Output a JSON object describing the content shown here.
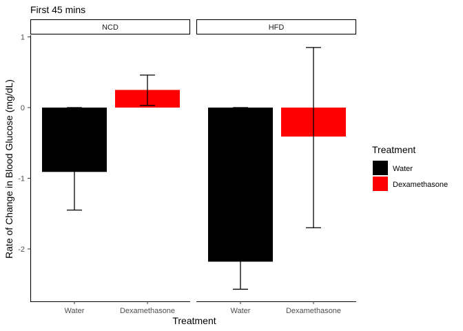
{
  "chart_data": {
    "type": "bar",
    "title": "First 45 mins",
    "xlabel": "Treatment",
    "ylabel": "Rate of Change in Blood Glucose (mg/dL)",
    "ylim": [
      -2.75,
      1.2
    ],
    "yticks": [
      1,
      0,
      -1,
      -2
    ],
    "categories": [
      "Water",
      "Dexamethasone"
    ],
    "colors": {
      "Water": "#000000",
      "Dexamethasone": "#ff0000"
    },
    "legend": {
      "title": "Treatment",
      "position": "right",
      "entries": [
        {
          "label": "Water",
          "color": "#000000"
        },
        {
          "label": "Dexamethasone",
          "color": "#ff0000"
        }
      ]
    },
    "panels": [
      {
        "name": "NCD",
        "bars": [
          {
            "category": "Water",
            "value": -0.91,
            "err_low": -1.45,
            "err_high": 0.0
          },
          {
            "category": "Dexamethasone",
            "value": 0.25,
            "err_low": 0.03,
            "err_high": 0.46
          }
        ]
      },
      {
        "name": "HFD",
        "bars": [
          {
            "category": "Water",
            "value": -2.18,
            "err_low": -2.57,
            "err_high": 0.0
          },
          {
            "category": "Dexamethasone",
            "value": -0.41,
            "err_low": -1.7,
            "err_high": 0.85
          }
        ]
      }
    ],
    "grid": false
  }
}
